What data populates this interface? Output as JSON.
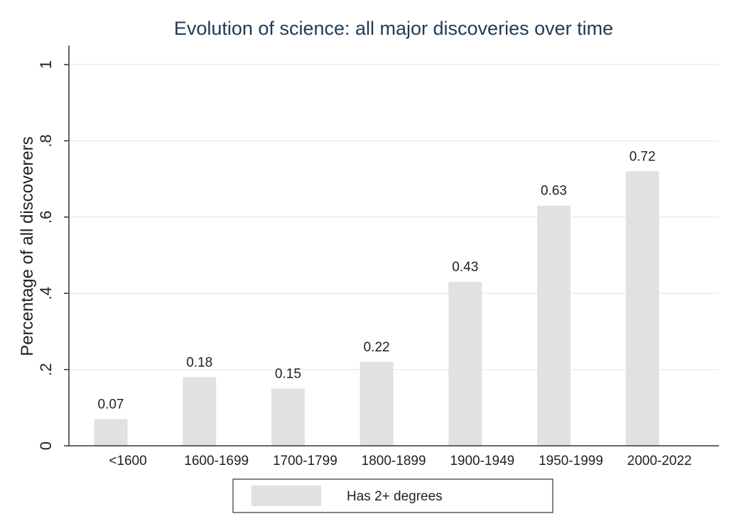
{
  "chart_data": {
    "type": "bar",
    "title": "Evolution of science: all major discoveries over time",
    "xlabel": "",
    "ylabel": "Percentage of all discoverers",
    "ylim": [
      0,
      1
    ],
    "yticks": [
      0,
      0.2,
      0.4,
      0.6,
      0.8,
      1
    ],
    "ytick_labels": [
      "0",
      ".2",
      ".4",
      ".6",
      ".8",
      "1"
    ],
    "categories": [
      "<1600",
      "1600-1699",
      "1700-1799",
      "1800-1899",
      "1900-1949",
      "1950-1999",
      "2000-2022"
    ],
    "series": [
      {
        "name": "Has 2+ degrees",
        "values": [
          0.07,
          0.18,
          0.15,
          0.22,
          0.43,
          0.63,
          0.72
        ],
        "value_labels": [
          "0.07",
          "0.18",
          "0.15",
          "0.22",
          "0.43",
          "0.63",
          "0.72"
        ]
      }
    ],
    "bar_color": "#e0e1e3",
    "grid_color": "#e6eef3",
    "grid": true,
    "legend_placement": "bottom"
  }
}
